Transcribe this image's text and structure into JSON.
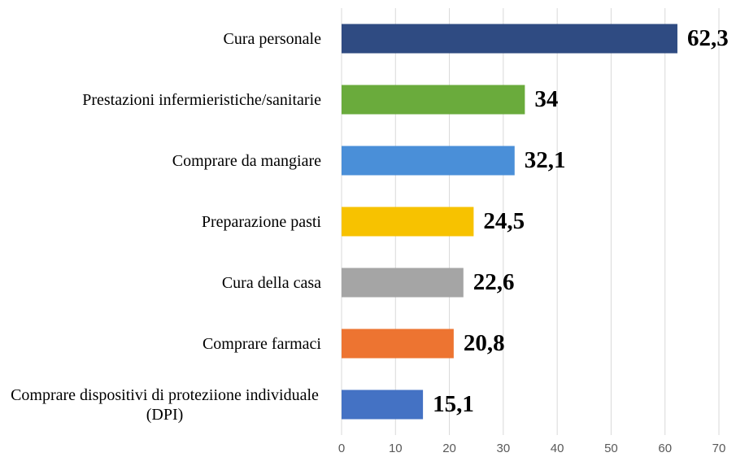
{
  "chart_data": {
    "type": "bar",
    "orientation": "horizontal",
    "categories": [
      "Cura personale",
      "Prestazioni infermieristiche/sanitarie",
      "Comprare da mangiare",
      "Preparazione pasti",
      "Cura della casa",
      "Comprare farmaci",
      "Comprare dispositivi di proteziione individuale (DPI)"
    ],
    "values": [
      62.3,
      34,
      32.1,
      24.5,
      22.6,
      20.8,
      15.1
    ],
    "value_labels": [
      "62,3",
      "34",
      "32,1",
      "24,5",
      "22,6",
      "20,8",
      "15,1"
    ],
    "colors": [
      "#2f4b82",
      "#6aab3c",
      "#4a8fd8",
      "#f7c200",
      "#a5a5a5",
      "#ed7431",
      "#4472c4"
    ],
    "xlim": [
      0,
      70
    ],
    "xticks": [
      0,
      10,
      20,
      30,
      40,
      50,
      60,
      70
    ],
    "grid": true
  }
}
